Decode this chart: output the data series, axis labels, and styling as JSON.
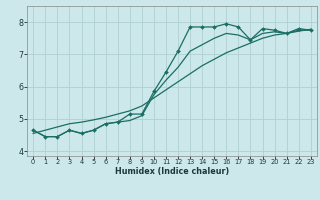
{
  "xlabel": "Humidex (Indice chaleur)",
  "bg_color": "#cde8ea",
  "grid_color": "#b0d0d2",
  "line_color": "#1a6e64",
  "xlim": [
    -0.5,
    23.5
  ],
  "ylim": [
    3.85,
    8.5
  ],
  "yticks": [
    4,
    5,
    6,
    7,
    8
  ],
  "xticks": [
    0,
    1,
    2,
    3,
    4,
    5,
    6,
    7,
    8,
    9,
    10,
    11,
    12,
    13,
    14,
    15,
    16,
    17,
    18,
    19,
    20,
    21,
    22,
    23
  ],
  "x_data": [
    0,
    1,
    2,
    3,
    4,
    5,
    6,
    7,
    8,
    9,
    10,
    11,
    12,
    13,
    14,
    15,
    16,
    17,
    18,
    19,
    20,
    21,
    22,
    23
  ],
  "y_marked": [
    4.65,
    4.45,
    4.45,
    4.65,
    4.55,
    4.65,
    4.85,
    4.9,
    5.15,
    5.15,
    5.85,
    6.45,
    7.1,
    7.85,
    7.85,
    7.85,
    7.95,
    7.85,
    7.45,
    7.8,
    7.75,
    7.65,
    7.8,
    7.75
  ],
  "y_smooth": [
    4.65,
    4.45,
    4.45,
    4.65,
    4.55,
    4.65,
    4.85,
    4.9,
    4.95,
    5.1,
    5.75,
    6.2,
    6.6,
    7.1,
    7.3,
    7.5,
    7.65,
    7.6,
    7.45,
    7.65,
    7.7,
    7.65,
    7.75,
    7.75
  ],
  "y_linear": [
    4.55,
    4.65,
    4.75,
    4.85,
    4.9,
    4.97,
    5.05,
    5.15,
    5.25,
    5.4,
    5.65,
    5.9,
    6.15,
    6.4,
    6.65,
    6.85,
    7.05,
    7.2,
    7.35,
    7.5,
    7.6,
    7.65,
    7.72,
    7.78
  ]
}
